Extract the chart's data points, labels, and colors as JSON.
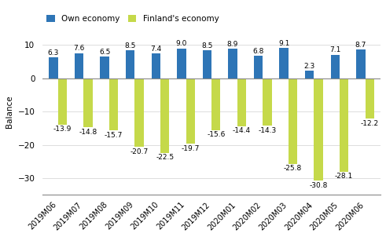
{
  "categories": [
    "2019M06",
    "2019M07",
    "2019M08",
    "2019M09",
    "2019M10",
    "2019M11",
    "2019M12",
    "2020M01",
    "2020M02",
    "2020M03",
    "2020M04",
    "2020M05",
    "2020M06"
  ],
  "own_economy": [
    6.3,
    7.6,
    6.5,
    8.5,
    7.4,
    9.0,
    8.5,
    8.9,
    6.8,
    9.1,
    2.3,
    7.1,
    8.7
  ],
  "finland_economy": [
    -13.9,
    -14.8,
    -15.7,
    -20.7,
    -22.5,
    -19.7,
    -15.6,
    -14.4,
    -14.3,
    -25.8,
    -30.8,
    -28.1,
    -12.2
  ],
  "own_color": "#2E75B6",
  "finland_color": "#C5D94A",
  "ylabel": "Balance",
  "ylim": [
    -35,
    15
  ],
  "yticks": [
    -30,
    -20,
    -10,
    0,
    10
  ],
  "legend_labels": [
    "Own economy",
    "Finland's economy"
  ],
  "bar_width": 0.35,
  "background_color": "#ffffff",
  "grid_color": "#d0d0d0",
  "label_fontsize": 6.5,
  "axis_fontsize": 7.5
}
